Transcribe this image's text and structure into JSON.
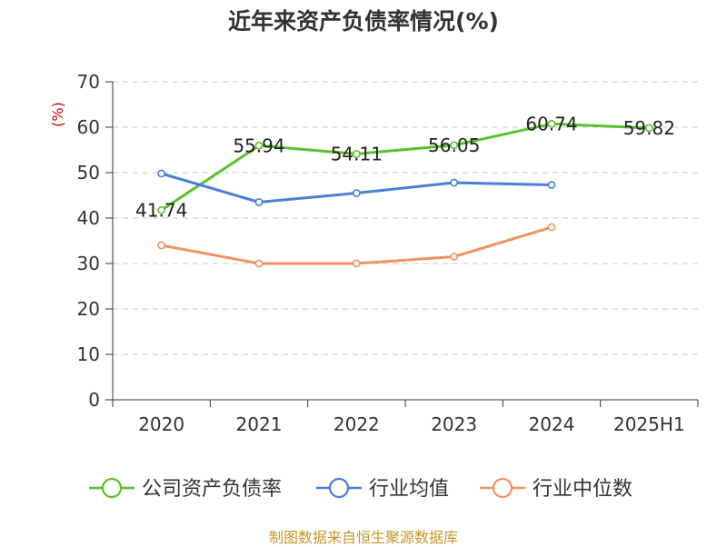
{
  "title": "近年来资产负债率情况(%)",
  "source_note": "制图数据来自恒生聚源数据库",
  "chart_data": {
    "type": "line",
    "title": "近年来资产负债率情况(%)",
    "xlabel": "",
    "ylabel": "(%)",
    "categories": [
      "2020",
      "2021",
      "2022",
      "2023",
      "2024",
      "2025H1"
    ],
    "ylim": [
      0,
      70
    ],
    "yticks": [
      0,
      10,
      20,
      30,
      40,
      50,
      60,
      70
    ],
    "grid": true,
    "legend_position": "bottom",
    "series": [
      {
        "name": "公司资产负债率",
        "color": "#5bc02e",
        "values": [
          41.74,
          55.94,
          54.11,
          56.05,
          60.74,
          59.82
        ],
        "labels": [
          "41.74",
          "55.94",
          "54.11",
          "56.05",
          "60.74",
          "59.82"
        ]
      },
      {
        "name": "行业均值",
        "color": "#4a7fd9",
        "values": [
          49.8,
          43.5,
          45.5,
          47.8,
          47.3,
          null
        ]
      },
      {
        "name": "行业中位数",
        "color": "#f39161",
        "values": [
          34.0,
          30.0,
          30.0,
          31.5,
          38.0,
          null
        ]
      }
    ]
  }
}
